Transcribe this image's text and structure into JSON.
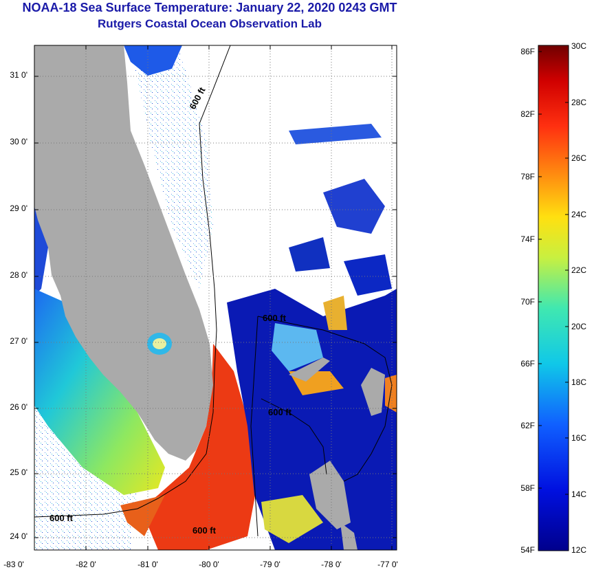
{
  "title": {
    "line1": "NOAA-18 Sea Surface Temperature:  January 22, 2020 0243 GMT",
    "line2": "Rutgers Coastal Ocean Observation Lab"
  },
  "map": {
    "lat_labels": [
      "31 0'",
      "30 0'",
      "29 0'",
      "28 0'",
      "27 0'",
      "26 0'",
      "25 0'",
      "24 0'"
    ],
    "lon_labels": [
      "-83 0'",
      "-82 0'",
      "-81 0'",
      "-80 0'",
      "-79 0'",
      "-78 0'",
      "-77 0'"
    ],
    "contour_labels": [
      "600 ft",
      "600 ft",
      "600 ft",
      "600 ft",
      "600 ft"
    ]
  },
  "colorbar": {
    "fahrenheit": [
      "86F",
      "82F",
      "78F",
      "74F",
      "70F",
      "66F",
      "62F",
      "58F",
      "54F"
    ],
    "celsius": [
      "30C",
      "28C",
      "26C",
      "24C",
      "22C",
      "20C",
      "18C",
      "16C",
      "14C",
      "12C"
    ]
  },
  "colors": {
    "title": "#1a1aa8",
    "land": "#aaaaaa",
    "ocean_no_data": "#ffffff",
    "warm_stream": "#ec3a14",
    "cool_blue": "#0a1ab4"
  }
}
